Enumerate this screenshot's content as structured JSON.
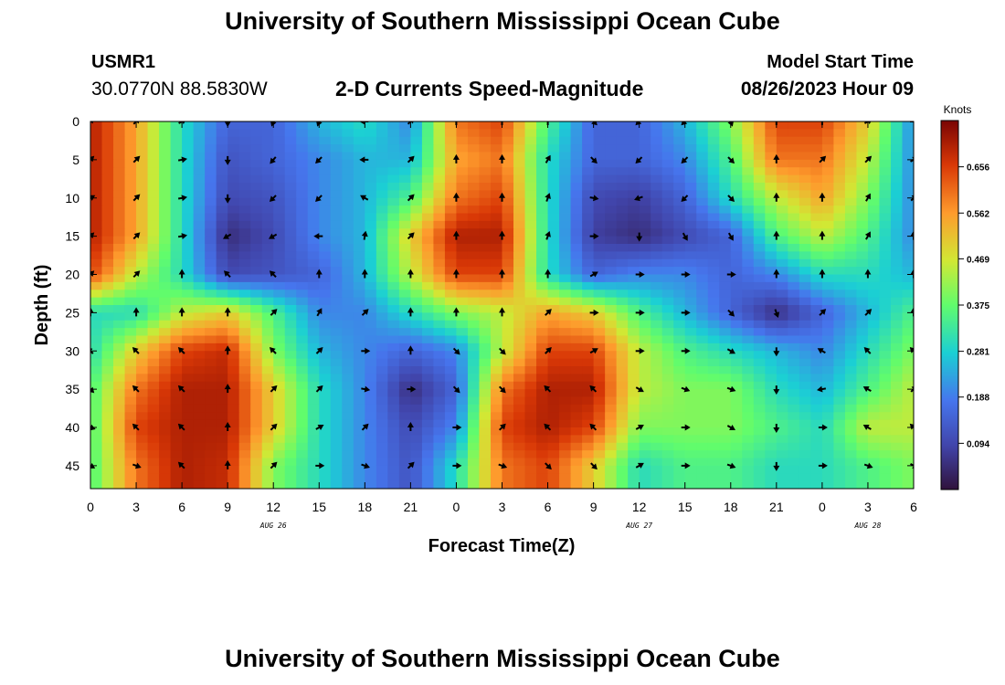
{
  "header": {
    "title": "University of Southern Mississippi Ocean Cube",
    "station_id": "USMR1",
    "coordinates": "30.0770N  88.5830W",
    "subtitle": "2-D Currents Speed-Magnitude",
    "model_start_label": "Model Start Time",
    "model_start_value": "08/26/2023 Hour 09"
  },
  "footer": {
    "title": "University of Southern Mississippi Ocean Cube"
  },
  "chart_data": {
    "type": "heatmap",
    "title": "2-D Currents Speed-Magnitude",
    "xlabel": "Forecast Time(Z)",
    "ylabel": "Depth (ft)",
    "x_hours": [
      0,
      3,
      6,
      9,
      12,
      15,
      18,
      21,
      24,
      27,
      30,
      33,
      36,
      39,
      42,
      45,
      48,
      51,
      54
    ],
    "x_tick_labels": [
      "0",
      "3",
      "6",
      "9",
      "12",
      "15",
      "18",
      "21",
      "0",
      "3",
      "6",
      "9",
      "12",
      "15",
      "18",
      "21",
      "0",
      "3",
      "6"
    ],
    "date_labels": [
      {
        "hour": 12,
        "text": "AUG 26"
      },
      {
        "hour": 36,
        "text": "AUG 27"
      },
      {
        "hour": 51,
        "text": "AUG 28"
      }
    ],
    "xlim": [
      0,
      54
    ],
    "depths_ft": [
      0,
      5,
      10,
      15,
      20,
      25,
      30,
      35,
      40,
      45
    ],
    "ylim": [
      0,
      48
    ],
    "colorbar": {
      "label": "Knots",
      "ticks": [
        "0.094",
        "0.188",
        "0.281",
        "0.375",
        "0.469",
        "0.562",
        "0.656"
      ],
      "range": [
        0.0,
        0.75
      ]
    },
    "speed_grid_knots": [
      [
        0.7,
        0.55,
        0.3,
        0.15,
        0.15,
        0.25,
        0.3,
        0.2,
        0.6,
        0.65,
        0.35,
        0.15,
        0.15,
        0.25,
        0.4,
        0.65,
        0.65,
        0.5,
        0.2
      ],
      [
        0.7,
        0.55,
        0.3,
        0.12,
        0.15,
        0.2,
        0.25,
        0.25,
        0.55,
        0.6,
        0.3,
        0.15,
        0.15,
        0.2,
        0.35,
        0.6,
        0.6,
        0.45,
        0.2
      ],
      [
        0.7,
        0.55,
        0.3,
        0.1,
        0.12,
        0.2,
        0.25,
        0.35,
        0.6,
        0.65,
        0.3,
        0.1,
        0.08,
        0.15,
        0.3,
        0.45,
        0.55,
        0.4,
        0.2
      ],
      [
        0.7,
        0.55,
        0.3,
        0.05,
        0.1,
        0.2,
        0.25,
        0.5,
        0.7,
        0.7,
        0.3,
        0.08,
        0.05,
        0.1,
        0.15,
        0.35,
        0.45,
        0.35,
        0.2
      ],
      [
        0.65,
        0.45,
        0.3,
        0.1,
        0.12,
        0.15,
        0.25,
        0.45,
        0.65,
        0.65,
        0.3,
        0.15,
        0.2,
        0.2,
        0.15,
        0.2,
        0.3,
        0.3,
        0.25
      ],
      [
        0.3,
        0.3,
        0.45,
        0.5,
        0.35,
        0.2,
        0.2,
        0.3,
        0.4,
        0.45,
        0.55,
        0.5,
        0.35,
        0.25,
        0.15,
        0.05,
        0.15,
        0.25,
        0.35
      ],
      [
        0.3,
        0.5,
        0.65,
        0.68,
        0.4,
        0.25,
        0.2,
        0.15,
        0.2,
        0.45,
        0.65,
        0.65,
        0.45,
        0.35,
        0.3,
        0.25,
        0.2,
        0.3,
        0.4
      ],
      [
        0.35,
        0.6,
        0.7,
        0.7,
        0.5,
        0.3,
        0.2,
        0.05,
        0.15,
        0.6,
        0.7,
        0.7,
        0.45,
        0.4,
        0.4,
        0.3,
        0.25,
        0.35,
        0.45
      ],
      [
        0.35,
        0.65,
        0.7,
        0.7,
        0.5,
        0.3,
        0.2,
        0.1,
        0.2,
        0.65,
        0.7,
        0.65,
        0.4,
        0.4,
        0.4,
        0.35,
        0.3,
        0.45,
        0.45
      ],
      [
        0.35,
        0.6,
        0.7,
        0.68,
        0.4,
        0.3,
        0.2,
        0.12,
        0.3,
        0.6,
        0.65,
        0.5,
        0.3,
        0.35,
        0.35,
        0.3,
        0.3,
        0.35,
        0.4
      ]
    ],
    "direction_grid_deg": [
      [
        45,
        45,
        60,
        180,
        200,
        200,
        270,
        45,
        0,
        0,
        0,
        135,
        225,
        225,
        160,
        0,
        0,
        60,
        90
      ],
      [
        45,
        45,
        80,
        180,
        220,
        225,
        270,
        45,
        0,
        0,
        30,
        135,
        225,
        225,
        135,
        0,
        45,
        45,
        60
      ],
      [
        60,
        45,
        80,
        180,
        225,
        225,
        300,
        45,
        0,
        0,
        20,
        100,
        250,
        225,
        135,
        0,
        0,
        30,
        45
      ],
      [
        45,
        45,
        80,
        240,
        240,
        270,
        10,
        45,
        0,
        0,
        20,
        90,
        180,
        150,
        150,
        0,
        0,
        30,
        0
      ],
      [
        45,
        45,
        0,
        315,
        315,
        0,
        0,
        0,
        0,
        0,
        0,
        60,
        90,
        90,
        90,
        0,
        0,
        0,
        0
      ],
      [
        0,
        0,
        0,
        0,
        45,
        30,
        45,
        0,
        0,
        0,
        45,
        90,
        90,
        90,
        135,
        160,
        45,
        45,
        0
      ],
      [
        315,
        315,
        315,
        0,
        315,
        45,
        90,
        0,
        135,
        135,
        45,
        60,
        90,
        90,
        120,
        180,
        300,
        315,
        315
      ],
      [
        135,
        315,
        315,
        0,
        45,
        45,
        100,
        90,
        135,
        135,
        315,
        315,
        120,
        110,
        110,
        180,
        260,
        300,
        45
      ],
      [
        110,
        315,
        315,
        0,
        45,
        60,
        45,
        0,
        90,
        45,
        315,
        315,
        60,
        90,
        120,
        180,
        90,
        300,
        315
      ],
      [
        120,
        110,
        315,
        0,
        45,
        90,
        110,
        45,
        90,
        110,
        135,
        135,
        60,
        90,
        110,
        180,
        90,
        110,
        120
      ]
    ]
  }
}
